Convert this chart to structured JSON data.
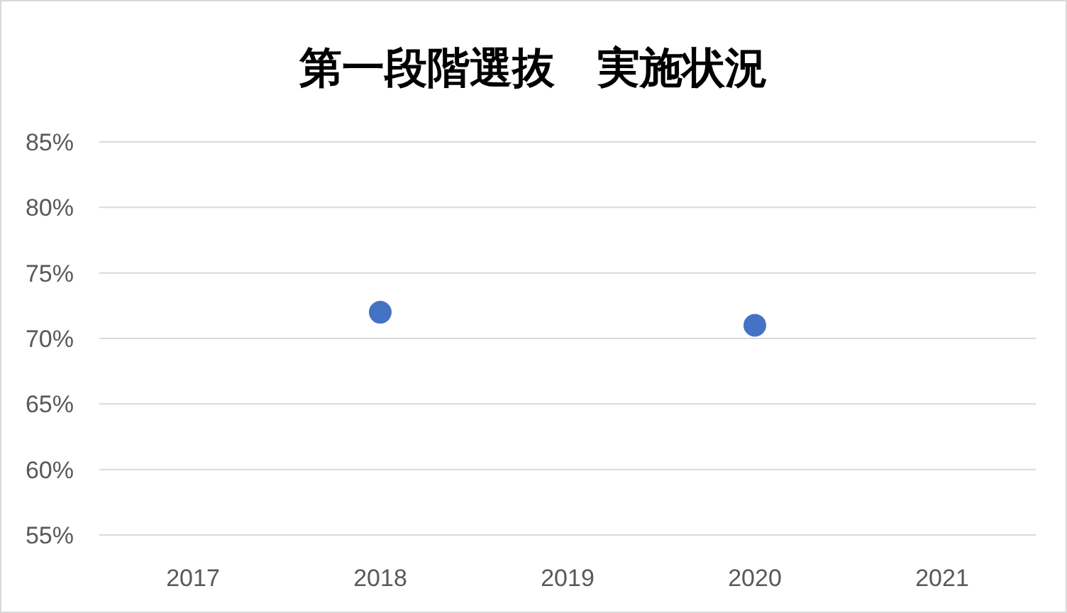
{
  "chart_data": {
    "type": "scatter",
    "title": "第一段階選抜　実施状況",
    "categories": [
      "2017",
      "2018",
      "2019",
      "2020",
      "2021"
    ],
    "series": [
      {
        "color": "#4472c4",
        "values": [
          null,
          72,
          null,
          71,
          null
        ]
      }
    ],
    "marker": "circle",
    "ylim": [
      55,
      85
    ],
    "yticks": [
      {
        "value": 55,
        "label": "55%"
      },
      {
        "value": 60,
        "label": "60%"
      },
      {
        "value": 65,
        "label": "65%"
      },
      {
        "value": 70,
        "label": "70%"
      },
      {
        "value": 75,
        "label": "75%"
      },
      {
        "value": 80,
        "label": "80%"
      },
      {
        "value": 85,
        "label": "85%"
      }
    ],
    "grid": "y"
  }
}
